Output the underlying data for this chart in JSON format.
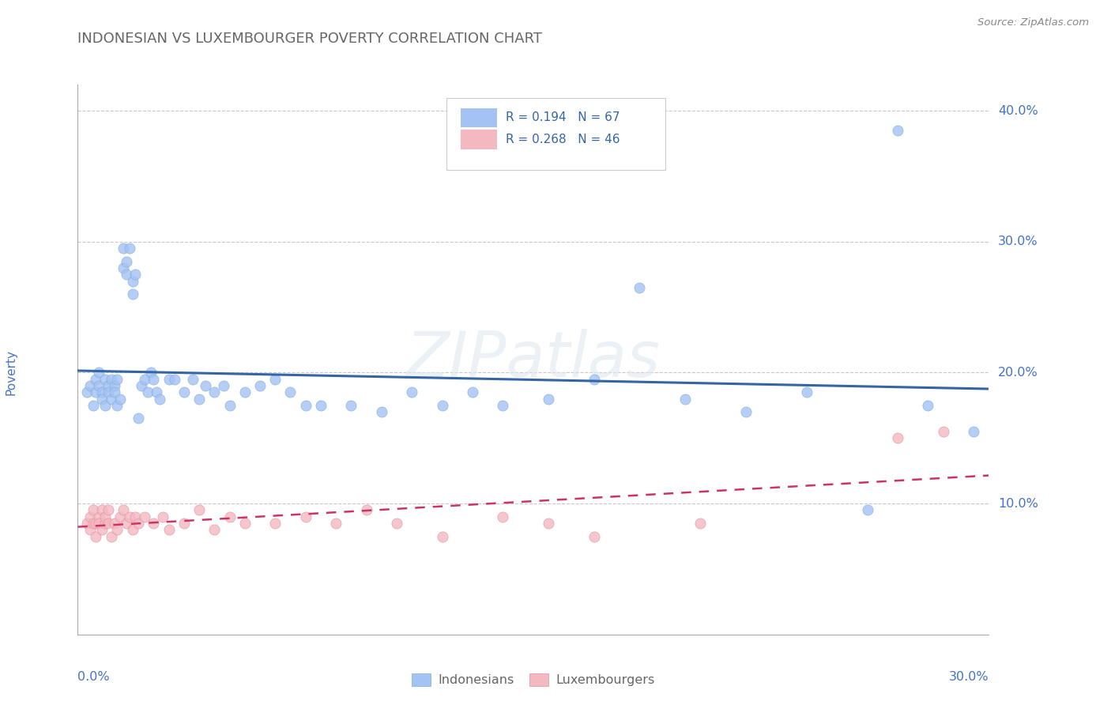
{
  "title": "INDONESIAN VS LUXEMBOURGER POVERTY CORRELATION CHART",
  "source": "Source: ZipAtlas.com",
  "x_min": 0.0,
  "x_max": 0.3,
  "y_min": 0.0,
  "y_max": 0.42,
  "y_ticks": [
    0.1,
    0.2,
    0.3,
    0.4
  ],
  "y_tick_labels": [
    "10.0%",
    "20.0%",
    "30.0%",
    "40.0%"
  ],
  "watermark": "ZIPatlas",
  "legend_r_blue": "R = 0.194",
  "legend_n_blue": "N = 67",
  "legend_r_pink": "R = 0.268",
  "legend_n_pink": "N = 46",
  "blue_color": "#a4c2f4",
  "pink_color": "#f4b8c1",
  "blue_line_color": "#3465a4",
  "pink_line_color": "#cc3366",
  "title_color": "#666666",
  "axis_label_color": "#4472c4",
  "indonesians_x": [
    0.003,
    0.004,
    0.005,
    0.006,
    0.006,
    0.007,
    0.007,
    0.008,
    0.008,
    0.009,
    0.009,
    0.01,
    0.01,
    0.011,
    0.011,
    0.012,
    0.012,
    0.013,
    0.013,
    0.014,
    0.015,
    0.015,
    0.016,
    0.016,
    0.017,
    0.018,
    0.018,
    0.019,
    0.02,
    0.021,
    0.022,
    0.023,
    0.024,
    0.025,
    0.026,
    0.027,
    0.03,
    0.032,
    0.035,
    0.038,
    0.04,
    0.042,
    0.045,
    0.048,
    0.05,
    0.055,
    0.06,
    0.065,
    0.07,
    0.075,
    0.08,
    0.09,
    0.1,
    0.11,
    0.12,
    0.13,
    0.14,
    0.155,
    0.17,
    0.185,
    0.2,
    0.22,
    0.24,
    0.26,
    0.27,
    0.28,
    0.295
  ],
  "indonesians_y": [
    0.185,
    0.19,
    0.175,
    0.195,
    0.185,
    0.2,
    0.19,
    0.185,
    0.18,
    0.195,
    0.175,
    0.19,
    0.185,
    0.195,
    0.18,
    0.19,
    0.185,
    0.195,
    0.175,
    0.18,
    0.28,
    0.295,
    0.285,
    0.275,
    0.295,
    0.27,
    0.26,
    0.275,
    0.165,
    0.19,
    0.195,
    0.185,
    0.2,
    0.195,
    0.185,
    0.18,
    0.195,
    0.195,
    0.185,
    0.195,
    0.18,
    0.19,
    0.185,
    0.19,
    0.175,
    0.185,
    0.19,
    0.195,
    0.185,
    0.175,
    0.175,
    0.175,
    0.17,
    0.185,
    0.175,
    0.185,
    0.175,
    0.18,
    0.195,
    0.265,
    0.18,
    0.17,
    0.185,
    0.095,
    0.385,
    0.175,
    0.155
  ],
  "luxembourgers_x": [
    0.003,
    0.004,
    0.004,
    0.005,
    0.005,
    0.006,
    0.006,
    0.007,
    0.007,
    0.008,
    0.008,
    0.009,
    0.009,
    0.01,
    0.01,
    0.011,
    0.012,
    0.013,
    0.014,
    0.015,
    0.016,
    0.017,
    0.018,
    0.019,
    0.02,
    0.022,
    0.025,
    0.028,
    0.03,
    0.035,
    0.04,
    0.045,
    0.05,
    0.055,
    0.065,
    0.075,
    0.085,
    0.095,
    0.105,
    0.12,
    0.14,
    0.155,
    0.17,
    0.205,
    0.27,
    0.285
  ],
  "luxembourgers_y": [
    0.085,
    0.09,
    0.08,
    0.095,
    0.085,
    0.075,
    0.085,
    0.09,
    0.085,
    0.095,
    0.08,
    0.085,
    0.09,
    0.095,
    0.085,
    0.075,
    0.085,
    0.08,
    0.09,
    0.095,
    0.085,
    0.09,
    0.08,
    0.09,
    0.085,
    0.09,
    0.085,
    0.09,
    0.08,
    0.085,
    0.095,
    0.08,
    0.09,
    0.085,
    0.085,
    0.09,
    0.085,
    0.095,
    0.085,
    0.075,
    0.09,
    0.085,
    0.075,
    0.085,
    0.15,
    0.155
  ]
}
